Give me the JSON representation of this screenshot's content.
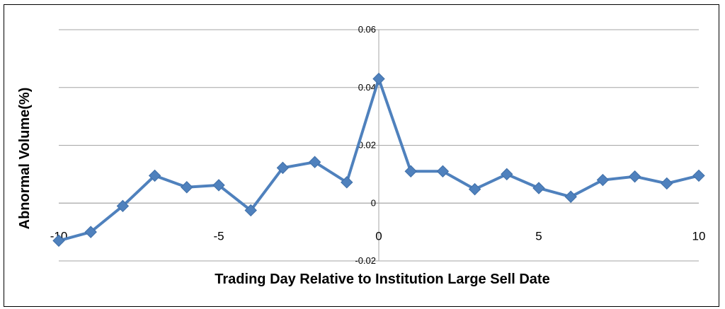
{
  "chart_data": {
    "type": "line",
    "xlabel": "Trading Day Relative to Institution Large Sell Date",
    "ylabel": "Abnormal Volume(%)",
    "xlim": [
      -10,
      10
    ],
    "ylim": [
      -0.02,
      0.06
    ],
    "x_ticks": [
      -10,
      -5,
      0,
      5,
      10
    ],
    "x_tick_labels": [
      "-10",
      "-5",
      "0",
      "5",
      "10"
    ],
    "y_ticks": [
      -0.02,
      0,
      0.02,
      0.04,
      0.06
    ],
    "y_tick_labels": [
      "-0.02",
      "0",
      "0.02",
      "0.04",
      "0.06"
    ],
    "grid": true,
    "series": [
      {
        "color": "#4F81BD",
        "marker": "diamond",
        "x": [
          -10,
          -9,
          -8,
          -7,
          -6,
          -5,
          -4,
          -3,
          -2,
          -1,
          0,
          1,
          2,
          3,
          4,
          5,
          6,
          7,
          8,
          9,
          10
        ],
        "y": [
          -0.013,
          -0.01,
          -0.001,
          0.0095,
          0.0055,
          0.0062,
          -0.0025,
          0.0122,
          0.0142,
          0.0072,
          0.043,
          0.011,
          0.011,
          0.0048,
          0.01,
          0.0052,
          0.0022,
          0.008,
          0.0092,
          0.0068,
          0.0095
        ]
      }
    ]
  }
}
